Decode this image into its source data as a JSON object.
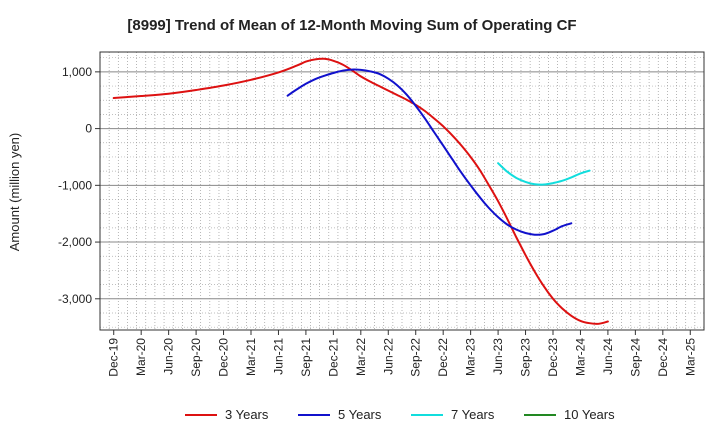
{
  "chart_data": {
    "type": "line",
    "title": "[8999]  Trend of Mean of 12-Month Moving Sum of Operating CF",
    "xlabel": "",
    "ylabel": "Amount (million yen)",
    "x_ticks": [
      "Dec-19",
      "Mar-20",
      "Jun-20",
      "Sep-20",
      "Dec-20",
      "Mar-21",
      "Jun-21",
      "Sep-21",
      "Dec-21",
      "Mar-22",
      "Jun-22",
      "Sep-22",
      "Dec-22",
      "Mar-23",
      "Jun-23",
      "Sep-23",
      "Dec-23",
      "Mar-24",
      "Jun-24",
      "Sep-24",
      "Dec-24",
      "Mar-25"
    ],
    "y_ticks": [
      1000,
      0,
      -1000,
      -2000,
      -3000
    ],
    "y_tick_labels": [
      "1,000",
      "0",
      "-1,000",
      "-2,000",
      "-3,000"
    ],
    "ylim": [
      -3550,
      1350
    ],
    "grid": true,
    "legend_position": "bottom",
    "series": [
      {
        "name": "3 Years",
        "color": "#dd1111",
        "points": [
          [
            0,
            540
          ],
          [
            1,
            575
          ],
          [
            2,
            615
          ],
          [
            3,
            680
          ],
          [
            4,
            760
          ],
          [
            5,
            860
          ],
          [
            6,
            990
          ],
          [
            6.667,
            1110
          ],
          [
            7,
            1180
          ],
          [
            7.333,
            1220
          ],
          [
            7.667,
            1230
          ],
          [
            8,
            1195
          ],
          [
            8.333,
            1130
          ],
          [
            8.667,
            1030
          ],
          [
            9,
            920
          ],
          [
            9.333,
            830
          ],
          [
            9.667,
            750
          ],
          [
            10,
            670
          ],
          [
            10.333,
            590
          ],
          [
            10.667,
            510
          ],
          [
            11,
            420
          ],
          [
            11.333,
            310
          ],
          [
            11.667,
            180
          ],
          [
            12,
            40
          ],
          [
            12.333,
            -120
          ],
          [
            12.667,
            -300
          ],
          [
            13,
            -500
          ],
          [
            13.333,
            -730
          ],
          [
            13.667,
            -1000
          ],
          [
            14,
            -1280
          ],
          [
            14.333,
            -1590
          ],
          [
            14.667,
            -1920
          ],
          [
            15,
            -2230
          ],
          [
            15.333,
            -2520
          ],
          [
            15.667,
            -2780
          ],
          [
            16,
            -3000
          ],
          [
            16.333,
            -3170
          ],
          [
            16.667,
            -3300
          ],
          [
            17,
            -3390
          ],
          [
            17.333,
            -3430
          ],
          [
            17.667,
            -3440
          ],
          [
            18,
            -3400
          ]
        ]
      },
      {
        "name": "5 Years",
        "color": "#1111cc",
        "points": [
          [
            6.333,
            580
          ],
          [
            6.667,
            690
          ],
          [
            7,
            790
          ],
          [
            7.333,
            870
          ],
          [
            7.667,
            930
          ],
          [
            8,
            980
          ],
          [
            8.333,
            1020
          ],
          [
            8.667,
            1040
          ],
          [
            9,
            1035
          ],
          [
            9.333,
            1010
          ],
          [
            9.667,
            965
          ],
          [
            10,
            880
          ],
          [
            10.333,
            760
          ],
          [
            10.667,
            600
          ],
          [
            11,
            400
          ],
          [
            11.333,
            180
          ],
          [
            11.667,
            -60
          ],
          [
            12,
            -300
          ],
          [
            12.333,
            -540
          ],
          [
            12.667,
            -780
          ],
          [
            13,
            -1000
          ],
          [
            13.333,
            -1210
          ],
          [
            13.667,
            -1400
          ],
          [
            14,
            -1560
          ],
          [
            14.333,
            -1690
          ],
          [
            14.667,
            -1780
          ],
          [
            15,
            -1840
          ],
          [
            15.333,
            -1870
          ],
          [
            15.667,
            -1860
          ],
          [
            16,
            -1800
          ],
          [
            16.333,
            -1720
          ],
          [
            16.667,
            -1670
          ]
        ]
      },
      {
        "name": "7 Years",
        "color": "#11dddd",
        "points": [
          [
            14,
            -610
          ],
          [
            14.333,
            -760
          ],
          [
            14.667,
            -870
          ],
          [
            15,
            -940
          ],
          [
            15.333,
            -980
          ],
          [
            15.667,
            -985
          ],
          [
            16,
            -960
          ],
          [
            16.333,
            -920
          ],
          [
            16.667,
            -860
          ],
          [
            17,
            -790
          ],
          [
            17.333,
            -740
          ]
        ]
      },
      {
        "name": "10 Years",
        "color": "#228822",
        "points": []
      }
    ]
  }
}
